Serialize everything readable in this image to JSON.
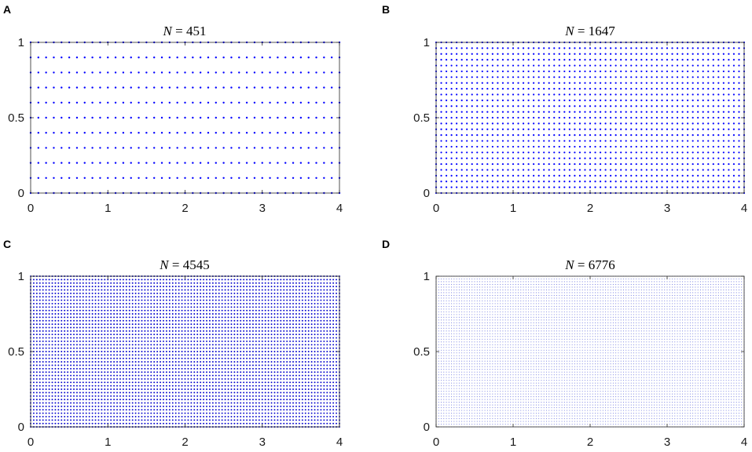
{
  "chart_data": [
    {
      "type": "scatter",
      "panel_label": "A",
      "title": "N = 451",
      "n_value": "451",
      "xlim": [
        0,
        4
      ],
      "ylim": [
        0,
        1
      ],
      "xticks": [
        "0",
        "1",
        "2",
        "3",
        "4"
      ],
      "yticks": [
        "0",
        "0.5",
        "1"
      ],
      "grid": false,
      "marker_color": "#0000ff",
      "point_grid": {
        "nx": 41,
        "ny": 11,
        "marker_radius": 1.2
      }
    },
    {
      "type": "scatter",
      "panel_label": "B",
      "title": "N = 1647",
      "n_value": "1647",
      "xlim": [
        0,
        4
      ],
      "ylim": [
        0,
        1
      ],
      "xticks": [
        "0",
        "1",
        "2",
        "3",
        "4"
      ],
      "yticks": [
        "0",
        "0.5",
        "1"
      ],
      "grid": false,
      "marker_color": "#0000ff",
      "point_grid": {
        "nx": 61,
        "ny": 27,
        "marker_radius": 1.1
      }
    },
    {
      "type": "scatter",
      "panel_label": "C",
      "title": "N = 4545",
      "n_value": "4545",
      "xlim": [
        0,
        4
      ],
      "ylim": [
        0,
        1
      ],
      "xticks": [
        "0",
        "1",
        "2",
        "3",
        "4"
      ],
      "yticks": [
        "0",
        "0.5",
        "1"
      ],
      "grid": false,
      "marker_color": "#0000cc",
      "point_grid": {
        "nx": 101,
        "ny": 45,
        "marker_radius": 0.95
      }
    },
    {
      "type": "scatter",
      "panel_label": "D",
      "title": "N = 6776",
      "n_value": "6776",
      "xlim": [
        0,
        4
      ],
      "ylim": [
        0,
        1
      ],
      "xticks": [
        "0",
        "1",
        "2",
        "3",
        "4"
      ],
      "yticks": [
        "0",
        "0.5",
        "1"
      ],
      "grid": false,
      "marker_color": "#6f78e0",
      "point_grid": {
        "nx": 121,
        "ny": 56,
        "marker_radius": 0.55
      }
    }
  ]
}
